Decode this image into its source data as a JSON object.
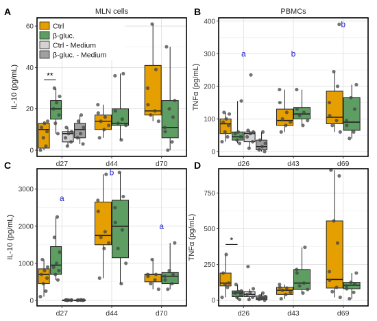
{
  "colors": {
    "ctrl": "#E69F00",
    "bgluc": "#5E9E62",
    "ctrl_medium": "#D3D3D3",
    "bgluc_medium": "#A0A0A0",
    "letter": "#1F1FCF",
    "point": "#444444"
  },
  "legend": {
    "items": [
      {
        "label": "Ctrl",
        "color": "#E69F00"
      },
      {
        "label": "β-gluc.",
        "color": "#5E9E62"
      },
      {
        "label": "Ctrl - Medium",
        "color": "#D3D3D3"
      },
      {
        "label": "β-gluc. - Medium",
        "color": "#A0A0A0"
      }
    ]
  },
  "chart_data": [
    {
      "panel": "A",
      "type": "box",
      "title": "MLN cells",
      "ylabel": "IL-10 (pg/mL)",
      "ylim": [
        -3,
        64
      ],
      "yticks": [
        0,
        20,
        40,
        60
      ],
      "categories": [
        "d27",
        "d44",
        "d70"
      ],
      "groups": [
        {
          "category": "d27",
          "series": "Ctrl",
          "q1": 1,
          "median": 10,
          "q3": 13,
          "whisker_low": 0,
          "whisker_high": 14,
          "points": [
            0,
            2,
            6,
            9,
            11,
            13,
            14
          ]
        },
        {
          "category": "d27",
          "series": "β-gluc.",
          "q1": 15,
          "median": 20,
          "q3": 24,
          "whisker_low": 8,
          "whisker_high": 30,
          "points": [
            8,
            13,
            17,
            20,
            23,
            26,
            30
          ]
        },
        {
          "category": "d27",
          "series": "Ctrl - Medium",
          "q1": 4,
          "median": 8,
          "q3": 9,
          "whisker_low": 2,
          "whisker_high": 11,
          "points": [
            2,
            4,
            6,
            8,
            9,
            11
          ]
        },
        {
          "category": "d27",
          "series": "β-gluc. - Medium",
          "q1": 6,
          "median": 10,
          "q3": 13,
          "whisker_low": 3,
          "whisker_high": 17,
          "points": [
            3,
            6,
            8,
            11,
            14,
            17
          ]
        },
        {
          "category": "d44",
          "series": "Ctrl",
          "q1": 10,
          "median": 14,
          "q3": 17,
          "whisker_low": 6,
          "whisker_high": 22,
          "points": [
            6,
            10,
            12,
            14,
            16,
            18,
            22
          ]
        },
        {
          "category": "d44",
          "series": "β-gluc.",
          "q1": 12,
          "median": 13,
          "q3": 20,
          "whisker_low": 5,
          "whisker_high": 37,
          "points": [
            5,
            12,
            13,
            15,
            19,
            36,
            37
          ]
        },
        {
          "category": "d70",
          "series": "Ctrl",
          "q1": 17,
          "median": 19,
          "q3": 41,
          "whisker_low": 14,
          "whisker_high": 61,
          "points": [
            14,
            17,
            19,
            22,
            30,
            39,
            61
          ]
        },
        {
          "category": "d70",
          "series": "β-gluc.",
          "q1": 6,
          "median": 11,
          "q3": 24,
          "whisker_low": 0,
          "whisker_high": 50,
          "points": [
            0,
            4,
            9,
            11,
            16,
            20,
            24,
            50
          ]
        }
      ],
      "annotations": [
        {
          "text": "**",
          "category": "d27",
          "series_span": [
            "Ctrl",
            "β-gluc."
          ],
          "y": 34
        }
      ]
    },
    {
      "panel": "B",
      "type": "box",
      "title": "PBMCs",
      "ylabel": "TNFα (pg/mL)",
      "ylim": [
        -15,
        410
      ],
      "yticks": [
        0,
        100,
        200,
        300,
        400
      ],
      "categories": [
        "d26",
        "d43",
        "d69"
      ],
      "groups": [
        {
          "category": "d26",
          "series": "Ctrl",
          "q1": 55,
          "median": 85,
          "q3": 100,
          "whisker_low": 30,
          "whisker_high": 120,
          "points": [
            30,
            45,
            60,
            80,
            90,
            100,
            115,
            120
          ]
        },
        {
          "category": "d26",
          "series": "β-gluc.",
          "q1": 35,
          "median": 45,
          "q3": 60,
          "whisker_low": 25,
          "whisker_high": 155,
          "points": [
            25,
            35,
            45,
            55,
            60,
            155
          ]
        },
        {
          "category": "d26",
          "series": "Ctrl - Medium",
          "q1": 30,
          "median": 55,
          "q3": 60,
          "whisker_low": 10,
          "whisker_high": 65,
          "points": [
            10,
            30,
            45,
            55,
            60,
            65,
            235
          ]
        },
        {
          "category": "d26",
          "series": "β-gluc. - Medium",
          "q1": 5,
          "median": 15,
          "q3": 35,
          "whisker_low": 0,
          "whisker_high": 60,
          "points": [
            0,
            5,
            15,
            25,
            35,
            60
          ]
        },
        {
          "category": "d43",
          "series": "Ctrl",
          "q1": 80,
          "median": 95,
          "q3": 130,
          "whisker_low": 60,
          "whisker_high": 190,
          "points": [
            60,
            80,
            90,
            100,
            120,
            150,
            190
          ]
        },
        {
          "category": "d43",
          "series": "β-gluc.",
          "q1": 100,
          "median": 115,
          "q3": 135,
          "whisker_low": 80,
          "whisker_high": 190,
          "points": [
            80,
            95,
            110,
            120,
            130,
            190
          ]
        },
        {
          "category": "d69",
          "series": "Ctrl",
          "q1": 85,
          "median": 105,
          "q3": 185,
          "whisker_low": 60,
          "whisker_high": 245,
          "points": [
            60,
            80,
            95,
            110,
            150,
            200,
            245,
            390
          ]
        },
        {
          "category": "d69",
          "series": "β-gluc.",
          "q1": 65,
          "median": 90,
          "q3": 165,
          "whisker_low": 40,
          "whisker_high": 205,
          "points": [
            40,
            60,
            80,
            95,
            130,
            165,
            205
          ]
        }
      ],
      "annotations": [
        {
          "text": "a",
          "category": "d26",
          "y": 300
        },
        {
          "text": "b",
          "category": "d43",
          "y": 300
        },
        {
          "text": "b",
          "category": "d69",
          "y": 390
        }
      ]
    },
    {
      "panel": "C",
      "type": "box",
      "title": "",
      "ylabel": "IL-10 (pg/mL)",
      "ylim": [
        -150,
        3550
      ],
      "yticks": [
        0,
        1000,
        2000,
        3000
      ],
      "categories": [
        "d27",
        "d44",
        "d70"
      ],
      "groups": [
        {
          "category": "d27",
          "series": "Ctrl",
          "q1": 450,
          "median": 700,
          "q3": 850,
          "whisker_low": 100,
          "whisker_high": 1100,
          "points": [
            100,
            250,
            450,
            600,
            700,
            800,
            900,
            1100
          ]
        },
        {
          "category": "d27",
          "series": "β-gluc.",
          "q1": 700,
          "median": 950,
          "q3": 1450,
          "whisker_low": 550,
          "whisker_high": 2250,
          "points": [
            550,
            700,
            800,
            900,
            1000,
            1300,
            1700,
            2250
          ]
        },
        {
          "category": "d27",
          "series": "Ctrl - Medium",
          "q1": 0,
          "median": 5,
          "q3": 10,
          "whisker_low": 0,
          "whisker_high": 15,
          "points": [
            0,
            3,
            5,
            8,
            10,
            15
          ]
        },
        {
          "category": "d27",
          "series": "β-gluc. - Medium",
          "q1": 0,
          "median": 5,
          "q3": 10,
          "whisker_low": 0,
          "whisker_high": 15,
          "points": [
            0,
            3,
            5,
            8,
            10,
            15
          ]
        },
        {
          "category": "d44",
          "series": "Ctrl",
          "q1": 1500,
          "median": 1750,
          "q3": 2650,
          "whisker_low": 600,
          "whisker_high": 3400,
          "points": [
            600,
            1400,
            1550,
            1700,
            1850,
            2400,
            2700,
            3400
          ]
        },
        {
          "category": "d44",
          "series": "β-gluc.",
          "q1": 1150,
          "median": 2000,
          "q3": 2700,
          "whisker_low": 450,
          "whisker_high": 3450,
          "points": [
            450,
            1000,
            1400,
            1900,
            2100,
            2500,
            2800,
            3450
          ]
        },
        {
          "category": "d70",
          "series": "Ctrl",
          "q1": 500,
          "median": 700,
          "q3": 700,
          "whisker_low": 300,
          "whisker_high": 1100,
          "points": [
            300,
            450,
            550,
            650,
            700,
            700,
            1100
          ]
        },
        {
          "category": "d70",
          "series": "β-gluc.",
          "q1": 450,
          "median": 650,
          "q3": 750,
          "whisker_low": 300,
          "whisker_high": 1550,
          "points": [
            300,
            450,
            550,
            650,
            700,
            800,
            1550
          ]
        }
      ],
      "annotations": [
        {
          "text": "a",
          "category": "d27",
          "y": 2750
        },
        {
          "text": "b",
          "category": "d44",
          "y": 3450
        },
        {
          "text": "a",
          "category": "d70",
          "y": 2000
        }
      ]
    },
    {
      "panel": "D",
      "type": "box",
      "title": "",
      "ylabel": "TNFα (pg/mL)",
      "ylim": [
        -40,
        920
      ],
      "yticks": [
        0,
        250,
        500,
        750
      ],
      "categories": [
        "d26",
        "d43",
        "d69"
      ],
      "groups": [
        {
          "category": "d26",
          "series": "Ctrl",
          "q1": 100,
          "median": 120,
          "q3": 190,
          "whisker_low": 20,
          "whisker_high": 320,
          "points": [
            20,
            90,
            110,
            120,
            190,
            320
          ]
        },
        {
          "category": "d26",
          "series": "β-gluc.",
          "q1": 25,
          "median": 50,
          "q3": 65,
          "whisker_low": 5,
          "whisker_high": 110,
          "points": [
            5,
            20,
            35,
            50,
            60,
            65,
            110
          ]
        },
        {
          "category": "d26",
          "series": "Ctrl - Medium",
          "q1": 25,
          "median": 40,
          "q3": 60,
          "whisker_low": 5,
          "whisker_high": 80,
          "points": [
            5,
            20,
            40,
            55,
            80,
            235
          ]
        },
        {
          "category": "d26",
          "series": "β-gluc. - Medium",
          "q1": 5,
          "median": 15,
          "q3": 30,
          "whisker_low": 0,
          "whisker_high": 50,
          "points": [
            0,
            5,
            15,
            25,
            30,
            50
          ]
        },
        {
          "category": "d43",
          "series": "Ctrl",
          "q1": 40,
          "median": 70,
          "q3": 90,
          "whisker_low": 10,
          "whisker_high": 110,
          "points": [
            10,
            40,
            55,
            70,
            85,
            90,
            110
          ]
        },
        {
          "category": "d43",
          "series": "β-gluc.",
          "q1": 75,
          "median": 120,
          "q3": 215,
          "whisker_low": 50,
          "whisker_high": 370,
          "points": [
            50,
            75,
            100,
            120,
            190,
            215,
            370
          ]
        },
        {
          "category": "d69",
          "series": "Ctrl",
          "q1": 85,
          "median": 145,
          "q3": 555,
          "whisker_low": 20,
          "whisker_high": 910,
          "points": [
            20,
            60,
            90,
            140,
            200,
            400,
            555,
            870,
            910
          ]
        },
        {
          "category": "d69",
          "series": "β-gluc.",
          "q1": 80,
          "median": 105,
          "q3": 125,
          "whisker_low": 10,
          "whisker_high": 190,
          "points": [
            10,
            55,
            80,
            100,
            115,
            125,
            190
          ]
        }
      ],
      "annotations": [
        {
          "text": "*",
          "category": "d26",
          "series_span": [
            "Ctrl",
            "β-gluc."
          ],
          "y": 390
        }
      ]
    }
  ]
}
